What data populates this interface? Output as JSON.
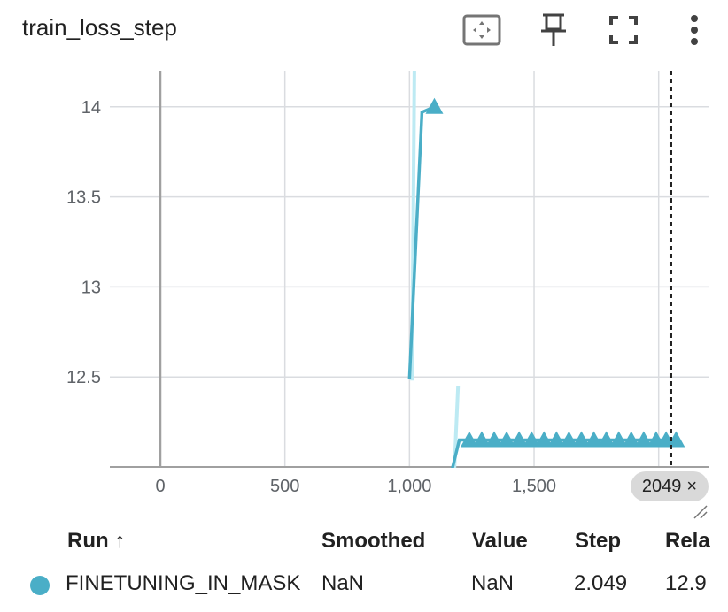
{
  "card": {
    "title": "train_loss_step",
    "toolbar": {
      "fit_icon": "fit-to-domain-icon",
      "pin_icon": "pin-icon",
      "fullscreen_icon": "fullscreen-icon",
      "menu_icon": "more-vert-icon"
    }
  },
  "colors": {
    "series": "#4aaec7",
    "series_light": "#bdeaf3",
    "grid": "#dadce0",
    "axis": "#a0a0a0",
    "chip_bg": "#d9d9d9"
  },
  "chart_data": {
    "type": "line",
    "title": "train_loss_step",
    "xlabel": "",
    "ylabel": "",
    "xlim": [
      -200,
      2200
    ],
    "ylim": [
      12.0,
      14.2
    ],
    "x_ticks": [
      0,
      500,
      1000,
      1500
    ],
    "x_tick_labels": [
      "0",
      "500",
      "1,000",
      "1,500"
    ],
    "y_ticks": [
      12.5,
      13,
      13.5,
      14
    ],
    "y_tick_labels": [
      "12.5",
      "13",
      "13.5",
      "14"
    ],
    "grid": true,
    "legend": "none",
    "selected_step": 2049,
    "series": [
      {
        "name": "FINETUNING_IN_MASK",
        "smoothed": [
          {
            "x": 1000,
            "y": 12.49
          },
          {
            "x": 1050,
            "y": 13.97
          },
          {
            "x": 1100,
            "y": 14.0
          }
        ],
        "raw": [
          {
            "x": 1010,
            "y": 12.48
          },
          {
            "x": 1020,
            "y": 14.25
          }
        ],
        "markers": [
          {
            "x": 1100,
            "y": 14.0
          }
        ]
      },
      {
        "name": "FINETUNING_IN_MASK",
        "smoothed": [
          {
            "x": 1170,
            "y": 11.98
          },
          {
            "x": 1200,
            "y": 12.15
          },
          {
            "x": 1240,
            "y": 12.15
          },
          {
            "x": 2050,
            "y": 12.15
          },
          {
            "x": 2070,
            "y": 12.15
          }
        ],
        "raw": [
          {
            "x": 1180,
            "y": 11.98
          },
          {
            "x": 1195,
            "y": 12.45
          }
        ],
        "markers": [
          {
            "x": 1240,
            "y": 12.15
          },
          {
            "x": 1290,
            "y": 12.15
          },
          {
            "x": 1340,
            "y": 12.15
          },
          {
            "x": 1390,
            "y": 12.15
          },
          {
            "x": 1440,
            "y": 12.15
          },
          {
            "x": 1490,
            "y": 12.15
          },
          {
            "x": 1540,
            "y": 12.15
          },
          {
            "x": 1590,
            "y": 12.15
          },
          {
            "x": 1640,
            "y": 12.15
          },
          {
            "x": 1690,
            "y": 12.15
          },
          {
            "x": 1740,
            "y": 12.15
          },
          {
            "x": 1790,
            "y": 12.15
          },
          {
            "x": 1840,
            "y": 12.15
          },
          {
            "x": 1890,
            "y": 12.15
          },
          {
            "x": 1940,
            "y": 12.15
          },
          {
            "x": 1990,
            "y": 12.15
          },
          {
            "x": 2030,
            "y": 12.15
          },
          {
            "x": 2070,
            "y": 12.15
          }
        ]
      }
    ]
  },
  "step_chip": {
    "label": "2049",
    "close": "×"
  },
  "table": {
    "headers": {
      "run": "Run ↑",
      "smoothed": "Smoothed",
      "value": "Value",
      "step": "Step",
      "relative": "Rela"
    },
    "rows": [
      {
        "run": "FINETUNING_IN_MASK",
        "smoothed": "NaN",
        "value": "NaN",
        "step": "2.049",
        "relative": "12.9"
      }
    ]
  }
}
